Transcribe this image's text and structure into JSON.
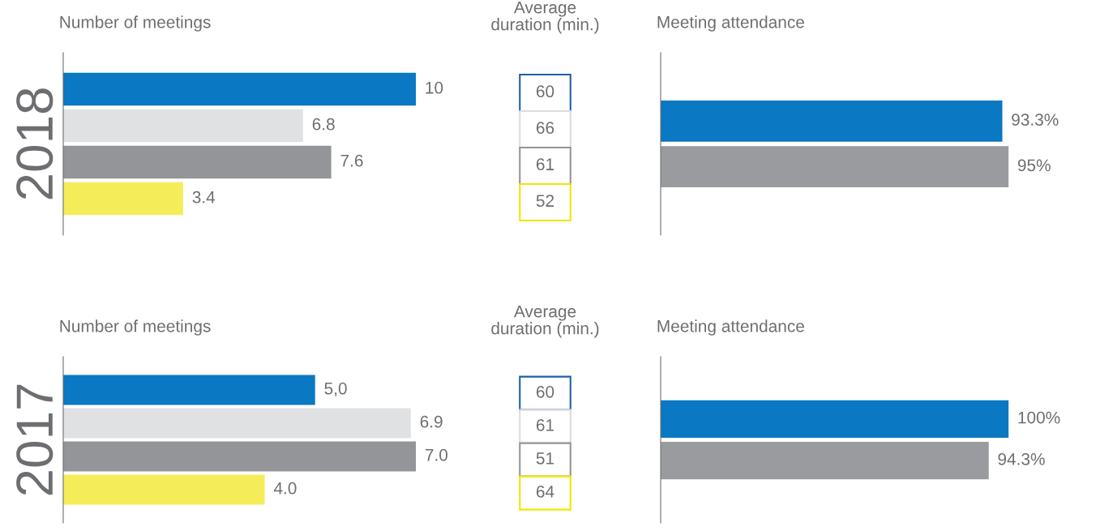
{
  "chart_data": [
    {
      "type": "bar",
      "orientation": "horizontal",
      "title": "Number of meetings",
      "ylabel": "2018",
      "categories": [
        null,
        null,
        null,
        null
      ],
      "values": [
        10,
        6.8,
        7.6,
        3.4
      ],
      "colors": [
        "#0a78c2",
        "#e0e1e3",
        "#939598",
        "#f5ec5a"
      ],
      "data_labels": true
    },
    {
      "type": "other",
      "title": "Average\nduration (min.)",
      "categories": [
        null,
        null,
        null,
        null
      ],
      "values": [
        60,
        66,
        61,
        52
      ],
      "colors": [
        "#1f5fa8",
        "#dcdcdc",
        "#939598",
        "#f2e500"
      ],
      "data_labels": true
    },
    {
      "type": "bar",
      "orientation": "horizontal",
      "title": "Meeting attendance",
      "categories": [
        null,
        null
      ],
      "values": [
        93.3,
        95
      ],
      "colors": [
        "#0a78c2",
        "#9a9b9e"
      ],
      "value_labels": [
        "93.3%",
        "95%"
      ]
    },
    {
      "type": "bar",
      "orientation": "horizontal",
      "title": "Number of meetings",
      "ylabel": "2017",
      "categories": [
        null,
        null,
        null,
        null
      ],
      "values": [
        5.0,
        6.9,
        7.0,
        4.0
      ],
      "colors": [
        "#0a78c2",
        "#e0e1e3",
        "#939598",
        "#f5ec5a"
      ],
      "value_labels": [
        "5,0",
        "6.9",
        "7.0",
        "4.0"
      ]
    },
    {
      "type": "other",
      "title": "Average\nduration (min.)",
      "categories": [
        null,
        null,
        null,
        null
      ],
      "values": [
        60,
        61,
        51,
        64
      ],
      "colors": [
        "#1f5fa8",
        "#dcdcdc",
        "#939598",
        "#f2e500"
      ],
      "data_labels": true
    },
    {
      "type": "bar",
      "orientation": "horizontal",
      "title": "Meeting attendance",
      "categories": [
        null,
        null
      ],
      "values": [
        100,
        94.3
      ],
      "colors": [
        "#0a78c2",
        "#9a9b9e"
      ],
      "value_labels": [
        "100%",
        "94.3%"
      ]
    }
  ]
}
